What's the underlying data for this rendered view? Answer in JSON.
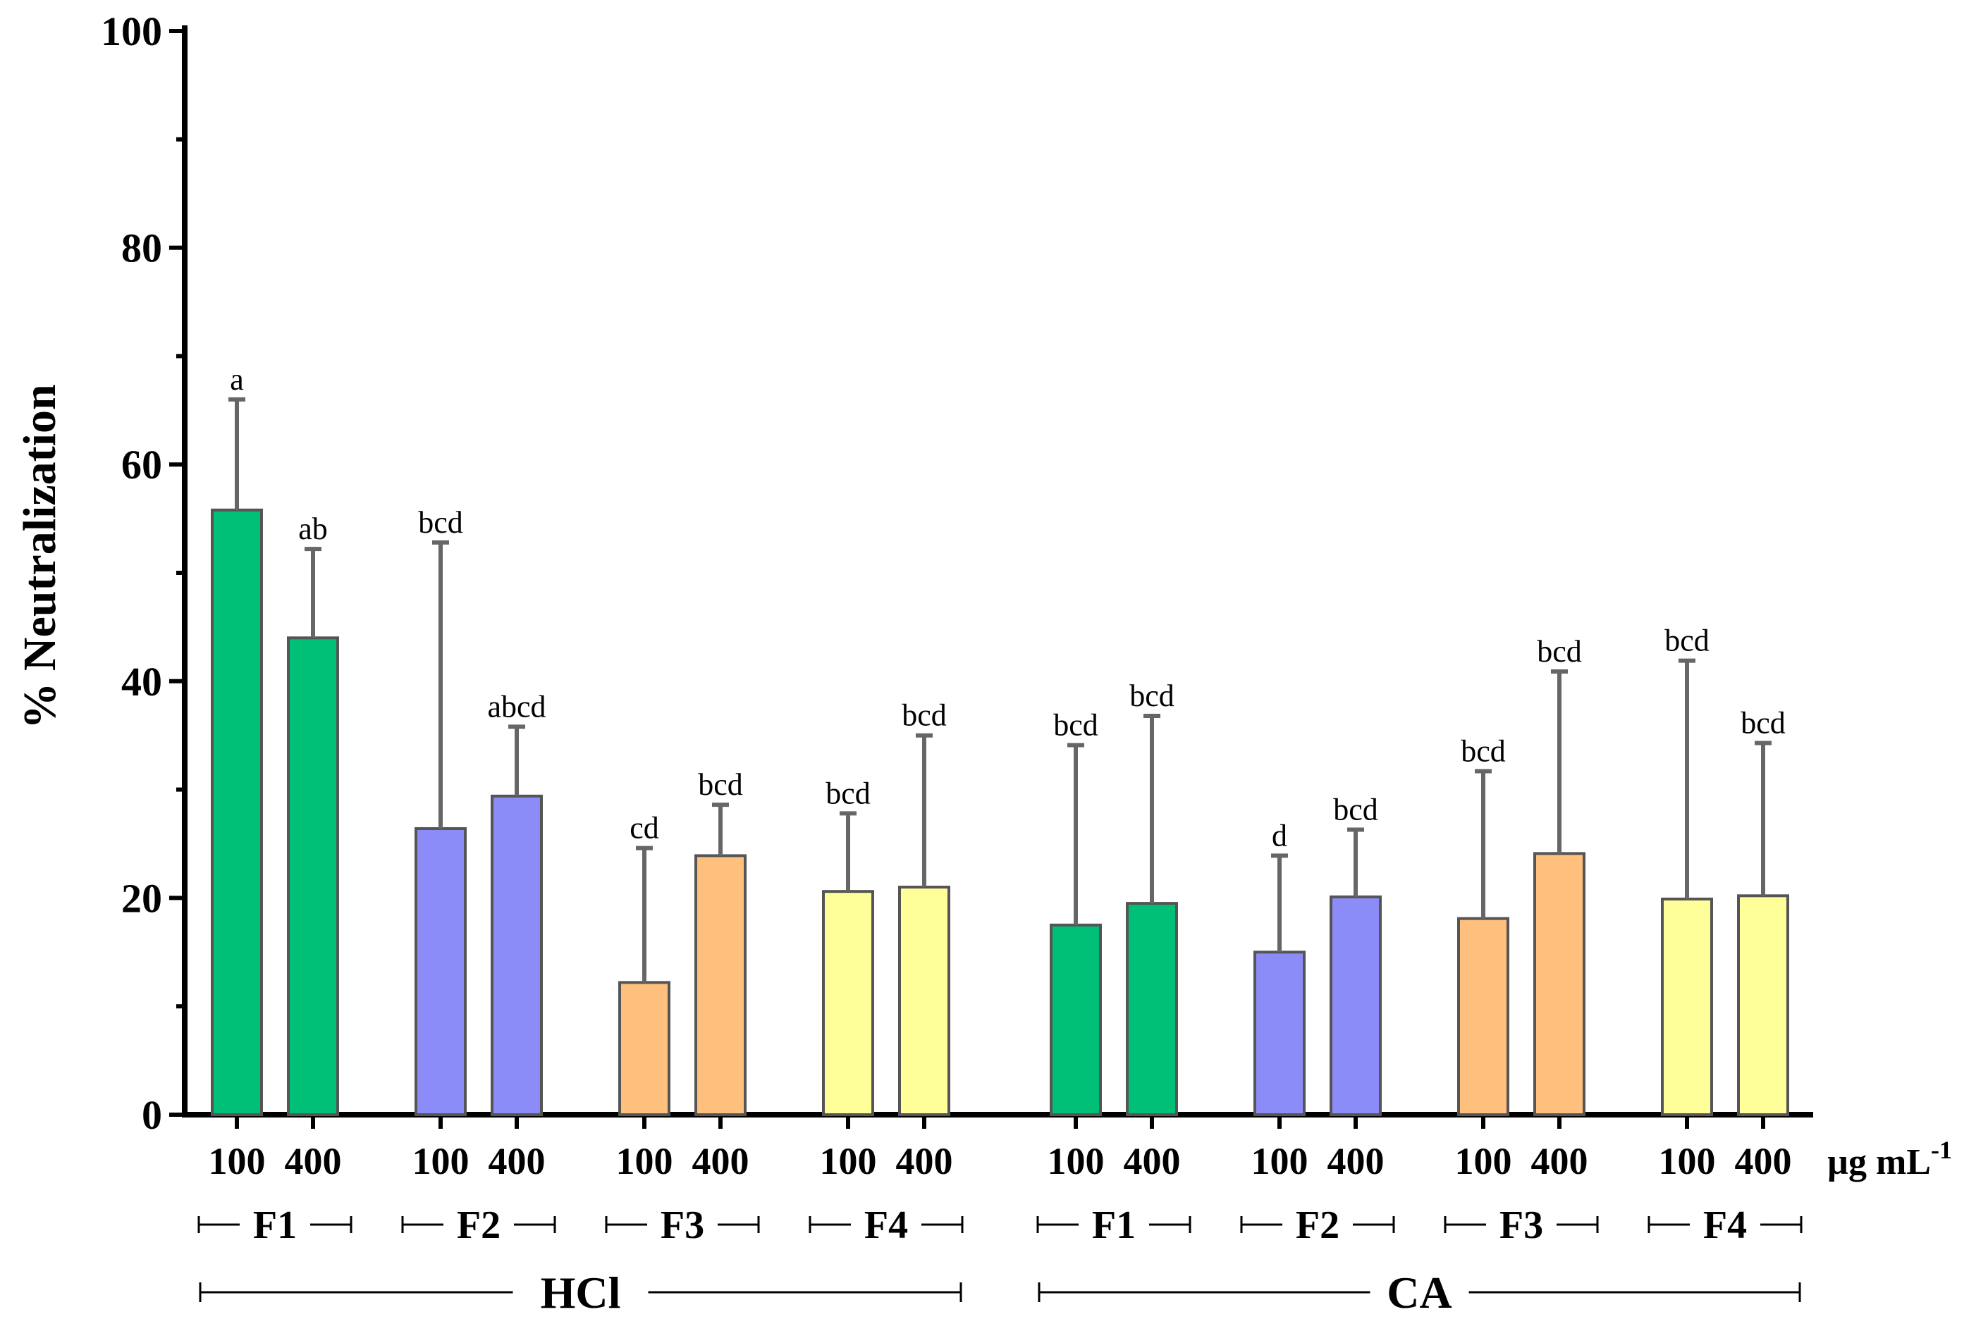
{
  "chart_data": {
    "type": "bar",
    "ylabel": "% Neutralization",
    "ylim": [
      0,
      100
    ],
    "yticks": [
      0,
      20,
      40,
      60,
      80,
      100
    ],
    "grid": false,
    "unit_label": "µg mL",
    "unit_exp": "-1",
    "treatments": [
      {
        "name": "HCl",
        "fractions": [
          {
            "name": "F1",
            "color": "#00bf76",
            "bars": [
              {
                "dose": "100",
                "value": 55.8,
                "error": 10.2,
                "sig": "a"
              },
              {
                "dose": "400",
                "value": 44.0,
                "error": 8.2,
                "sig": "ab"
              }
            ]
          },
          {
            "name": "F2",
            "color": "#8c8cf8",
            "bars": [
              {
                "dose": "100",
                "value": 26.4,
                "error": 26.4,
                "sig": "bcd"
              },
              {
                "dose": "400",
                "value": 29.4,
                "error": 6.4,
                "sig": "abcd"
              }
            ]
          },
          {
            "name": "F3",
            "color": "#ffc07e",
            "bars": [
              {
                "dose": "100",
                "value": 12.2,
                "error": 12.4,
                "sig": "cd"
              },
              {
                "dose": "400",
                "value": 23.9,
                "error": 4.7,
                "sig": "bcd"
              }
            ]
          },
          {
            "name": "F4",
            "color": "#ffff99",
            "bars": [
              {
                "dose": "100",
                "value": 20.6,
                "error": 7.2,
                "sig": "bcd"
              },
              {
                "dose": "400",
                "value": 21.0,
                "error": 14.0,
                "sig": "bcd"
              }
            ]
          }
        ]
      },
      {
        "name": "CA",
        "fractions": [
          {
            "name": "F1",
            "color": "#00bf76",
            "bars": [
              {
                "dose": "100",
                "value": 17.5,
                "error": 16.6,
                "sig": "bcd"
              },
              {
                "dose": "400",
                "value": 19.5,
                "error": 17.3,
                "sig": "bcd"
              }
            ]
          },
          {
            "name": "F2",
            "color": "#8c8cf8",
            "bars": [
              {
                "dose": "100",
                "value": 15.0,
                "error": 8.9,
                "sig": "d"
              },
              {
                "dose": "400",
                "value": 20.1,
                "error": 6.2,
                "sig": "bcd"
              }
            ]
          },
          {
            "name": "F3",
            "color": "#ffc07e",
            "bars": [
              {
                "dose": "100",
                "value": 18.1,
                "error": 13.6,
                "sig": "bcd"
              },
              {
                "dose": "400",
                "value": 24.1,
                "error": 16.8,
                "sig": "bcd"
              }
            ]
          },
          {
            "name": "F4",
            "color": "#ffff99",
            "bars": [
              {
                "dose": "100",
                "value": 19.9,
                "error": 22.0,
                "sig": "bcd"
              },
              {
                "dose": "400",
                "value": 20.2,
                "error": 14.1,
                "sig": "bcd"
              }
            ]
          }
        ]
      }
    ]
  }
}
